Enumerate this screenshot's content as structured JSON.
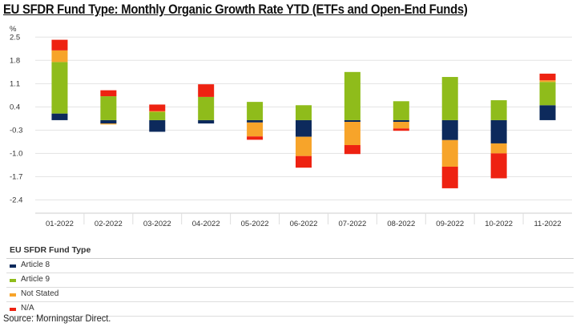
{
  "title": "EU SFDR Fund Type: Monthly Organic Growth Rate YTD (ETFs and Open-End Funds)",
  "source": "Source: Morningstar Direct.",
  "chart_data": {
    "type": "bar",
    "stacked": true,
    "ylabel": "%",
    "ylim": [
      -2.8,
      2.7
    ],
    "yticks": [
      2.5,
      1.8,
      1.1,
      0.4,
      -0.3,
      -1.0,
      -1.7,
      -2.4
    ],
    "categories": [
      "01-2022",
      "02-2022",
      "03-2022",
      "04-2022",
      "05-2022",
      "06-2022",
      "07-2022",
      "08-2022",
      "09-2022",
      "10-2022",
      "11-2022"
    ],
    "series": [
      {
        "name": "Article 8",
        "color": "#0d2a5c",
        "values": [
          0.2,
          -0.1,
          -0.35,
          -0.1,
          -0.07,
          -0.5,
          -0.05,
          -0.05,
          -0.6,
          -0.7,
          0.45
        ]
      },
      {
        "name": "Article 9",
        "color": "#8fbc1b",
        "values": [
          1.55,
          0.72,
          0.25,
          0.7,
          0.55,
          0.45,
          1.45,
          0.57,
          1.3,
          0.6,
          0.7
        ]
      },
      {
        "name": "Not Stated",
        "color": "#f7a42a",
        "values": [
          0.35,
          -0.03,
          0.02,
          0.0,
          -0.42,
          -0.58,
          -0.7,
          -0.2,
          -0.8,
          -0.3,
          0.05
        ]
      },
      {
        "name": "N/A",
        "color": "#ee2211",
        "values": [
          0.32,
          0.18,
          0.2,
          0.38,
          -0.1,
          -0.35,
          -0.27,
          -0.07,
          -0.65,
          -0.75,
          0.2
        ]
      }
    ],
    "legend_title": "EU SFDR Fund Type",
    "legend_position": "bottom",
    "grid": true
  }
}
